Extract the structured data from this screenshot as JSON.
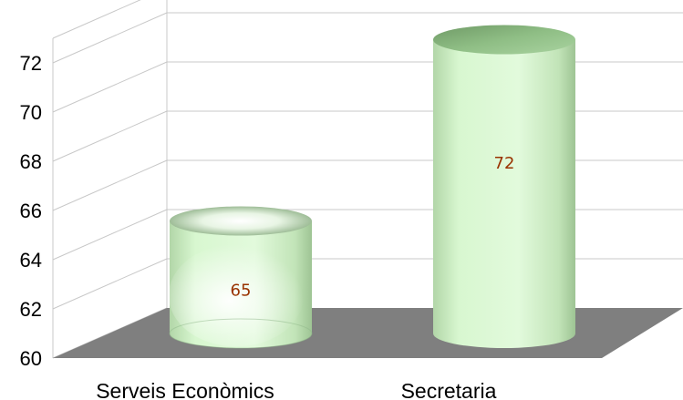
{
  "chart_data": {
    "type": "bar",
    "style": "3d-cylinder",
    "categories": [
      "Serveis Econòmics",
      "Secretaria"
    ],
    "values": [
      65,
      72
    ],
    "data_labels": [
      "65",
      "72"
    ],
    "y_ticks": [
      "60",
      "62",
      "64",
      "66",
      "68",
      "70",
      "72"
    ],
    "ylim": [
      60,
      73
    ],
    "grid": true,
    "legend": "none",
    "title": "",
    "xlabel": "",
    "ylabel": "",
    "colors": {
      "cylinder_fill": "#d8f7d0",
      "cylinder_dark": "#a6cc9c",
      "cylinder_top": "#8fbe85",
      "floor": "#7f7f7f",
      "grid": "#c8c8c8",
      "label": "#993300"
    }
  }
}
